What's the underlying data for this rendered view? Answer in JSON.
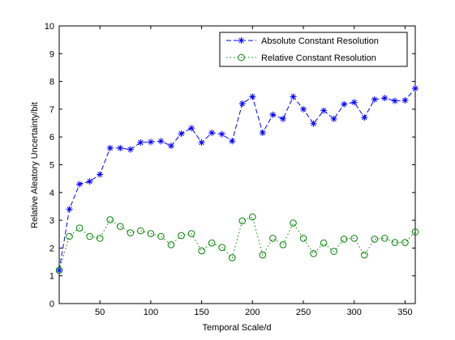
{
  "chart_data": {
    "type": "line",
    "xlabel": "Temporal Scale/d",
    "ylabel": "Relative Aleatory Uncertainty/bit",
    "xlim": [
      10,
      360
    ],
    "ylim": [
      0,
      10
    ],
    "xticks": [
      50,
      100,
      150,
      200,
      250,
      300,
      350
    ],
    "yticks": [
      0,
      1,
      2,
      3,
      4,
      5,
      6,
      7,
      8,
      9,
      10
    ],
    "legend_position": "top-right",
    "grid": false,
    "x": [
      10,
      20,
      30,
      40,
      50,
      60,
      70,
      80,
      90,
      100,
      110,
      120,
      130,
      140,
      150,
      160,
      170,
      180,
      190,
      200,
      210,
      220,
      230,
      240,
      250,
      260,
      270,
      280,
      290,
      300,
      310,
      320,
      330,
      340,
      350,
      360
    ],
    "series": [
      {
        "name": "Absolute Constant Resolution",
        "color": "#0000ff",
        "line_style": "dashed",
        "marker": "asterisk",
        "values": [
          1.2,
          3.4,
          4.3,
          4.4,
          4.65,
          5.6,
          5.6,
          5.55,
          5.8,
          5.82,
          5.85,
          5.68,
          6.12,
          6.32,
          5.8,
          6.15,
          6.1,
          5.85,
          7.2,
          7.45,
          6.15,
          6.8,
          6.65,
          7.45,
          7.0,
          6.48,
          6.95,
          6.65,
          7.18,
          7.25,
          6.7,
          7.35,
          7.4,
          7.3,
          7.32,
          7.75
        ]
      },
      {
        "name": "Relative Constant Resolution",
        "color": "#008000",
        "line_style": "dotted",
        "marker": "circle",
        "values": [
          1.2,
          2.42,
          2.72,
          2.42,
          2.35,
          3.02,
          2.78,
          2.55,
          2.62,
          2.52,
          2.42,
          2.12,
          2.45,
          2.52,
          1.9,
          2.18,
          2.02,
          1.65,
          2.98,
          3.12,
          1.75,
          2.35,
          2.12,
          2.9,
          2.35,
          1.8,
          2.18,
          1.88,
          2.32,
          2.35,
          1.75,
          2.32,
          2.35,
          2.2,
          2.2,
          2.58
        ]
      }
    ]
  }
}
